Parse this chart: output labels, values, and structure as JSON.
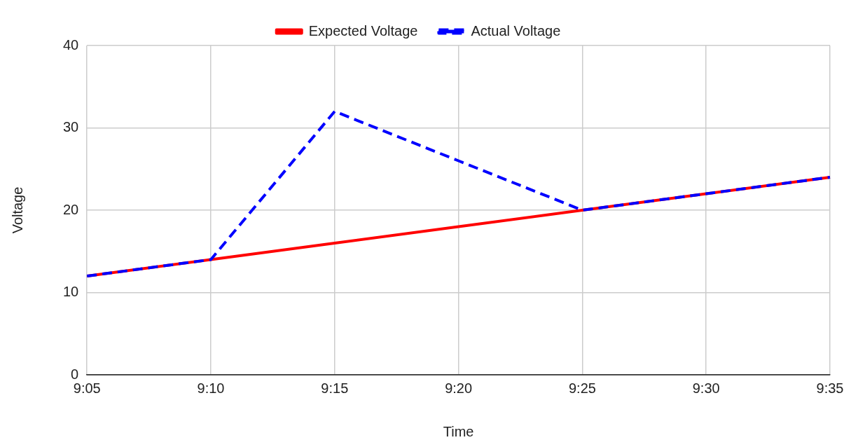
{
  "chart_data": {
    "type": "line",
    "xlabel": "Time",
    "ylabel": "Voltage",
    "categories": [
      "9:05",
      "9:10",
      "9:15",
      "9:20",
      "9:25",
      "9:30",
      "9:35"
    ],
    "series": [
      {
        "name": "Expected Voltage",
        "color": "#ff0000",
        "values": [
          12,
          14,
          16,
          18,
          20,
          22,
          24
        ],
        "line_style": "solid"
      },
      {
        "name": "Actual Voltage",
        "color": "#0000ff",
        "values": [
          12,
          14,
          32,
          26,
          20,
          22,
          24
        ],
        "line_style": "dashed"
      }
    ],
    "ylim": [
      0,
      40
    ],
    "yticks": [
      0,
      10,
      20,
      30,
      40
    ],
    "grid": true,
    "legend": "top",
    "marker": "none"
  }
}
